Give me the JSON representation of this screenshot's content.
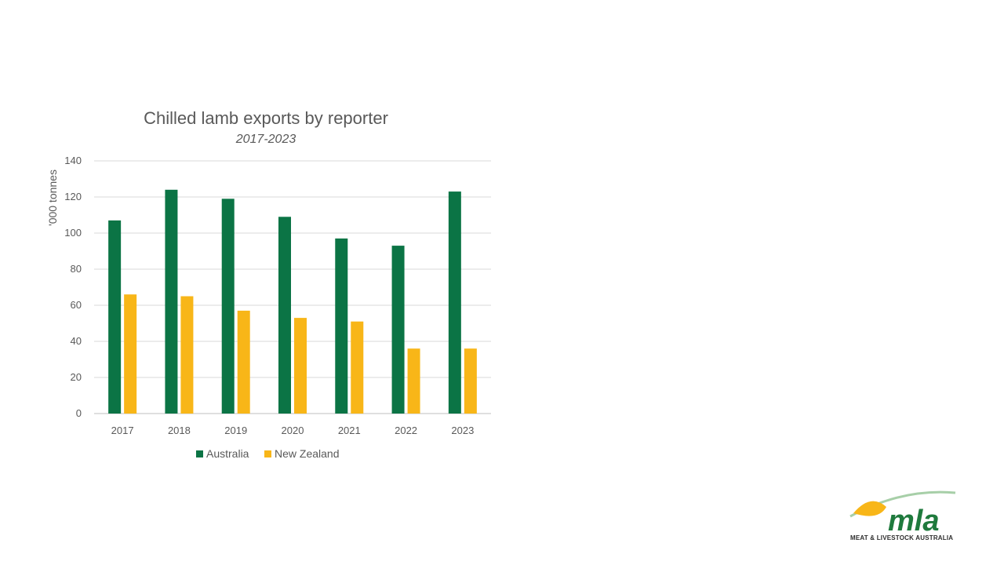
{
  "chart_data": {
    "type": "bar",
    "title": "Chilled lamb exports by reporter",
    "subtitle": "2017-2023",
    "xlabel": "",
    "ylabel": "'000 tonnes",
    "ylim": [
      0,
      140
    ],
    "yticks": [
      0,
      20,
      40,
      60,
      80,
      100,
      120,
      140
    ],
    "categories": [
      "2017",
      "2018",
      "2019",
      "2020",
      "2021",
      "2022",
      "2023"
    ],
    "series": [
      {
        "name": "Australia",
        "color": "#0b7445",
        "values": [
          107,
          124,
          119,
          109,
          97,
          93,
          123
        ]
      },
      {
        "name": "New Zealand",
        "color": "#f8b618",
        "values": [
          66,
          65,
          57,
          53,
          51,
          36,
          36
        ]
      }
    ],
    "grid": true,
    "legend_position": "bottom"
  },
  "logo": {
    "wordmark": "mla",
    "tagline": "MEAT & LIVESTOCK AUSTRALIA",
    "colors": {
      "green": "#1f7a3d",
      "yellow": "#f8b618",
      "arc": "#a7cfa8"
    }
  }
}
